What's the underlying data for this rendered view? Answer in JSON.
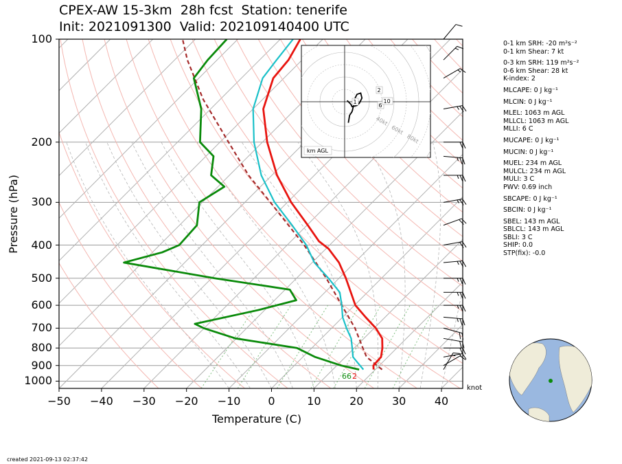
{
  "title": {
    "line1": "CPEX-AW 15-3km  28h fcst  Station: tenerife",
    "line2": "Init: 2021091300  Valid: 202109140400 UTC"
  },
  "axes": {
    "ylabel": "Pressure (hPa)",
    "xlabel": "Temperature (C)",
    "pressure_ticks": [
      "100",
      "200",
      "300",
      "400",
      "500",
      "600",
      "700",
      "800",
      "900",
      "1000"
    ],
    "temperature_ticks": [
      "−50",
      "−40",
      "−30",
      "−20",
      "−10",
      "0",
      "10",
      "20",
      "30",
      "40"
    ],
    "wind_unit": "knot"
  },
  "indices": [
    {
      "text": "0-1 km SRH: -20 m²s⁻²",
      "gap": false
    },
    {
      "text": "0-1 km Shear: 7 kt",
      "gap": false
    },
    {
      "text": "0-3 km SRH: 119 m²s⁻²",
      "gap": true
    },
    {
      "text": "0-6 km Shear: 28 kt",
      "gap": false
    },
    {
      "text": "K-index: 2",
      "gap": false
    },
    {
      "text": "MLCAPE: 0 J kg⁻¹",
      "gap": true
    },
    {
      "text": "MLCIN: 0 J kg⁻¹",
      "gap": true
    },
    {
      "text": "MLEL: 1063 m AGL",
      "gap": true
    },
    {
      "text": "MLLCL: 1063 m AGL",
      "gap": false
    },
    {
      "text": "MLLI: 6 C",
      "gap": false
    },
    {
      "text": "MUCAPE: 0 J kg⁻¹",
      "gap": true
    },
    {
      "text": "MUCIN: 0 J kg⁻¹",
      "gap": true
    },
    {
      "text": "MUEL: 234 m AGL",
      "gap": true
    },
    {
      "text": "MULCL: 234 m AGL",
      "gap": false
    },
    {
      "text": "MULI: 3 C",
      "gap": false
    },
    {
      "text": "PWV: 0.69 inch",
      "gap": false
    },
    {
      "text": "SBCAPE: 0 J kg⁻¹",
      "gap": true
    },
    {
      "text": "SBCIN: 0 J kg⁻¹",
      "gap": true
    },
    {
      "text": "SBEL: 143 m AGL",
      "gap": true
    },
    {
      "text": "SBLCL: 143 m AGL",
      "gap": false
    },
    {
      "text": "SBLI: 3 C",
      "gap": false
    },
    {
      "text": "SHIP: 0.0",
      "gap": false
    },
    {
      "text": "STP(fix): -0.0",
      "gap": false
    }
  ],
  "hodograph": {
    "label": "km AGL",
    "ring_labels": [
      "40kt",
      "60kt",
      "80kt"
    ],
    "height_labels": [
      "1",
      "2",
      "6",
      "10"
    ]
  },
  "surface_labels": {
    "dewpoint": "66",
    "temperature": "2"
  },
  "created": "created 2021-09-13 02:37:42",
  "colors": {
    "temperature": "#e8140f",
    "dewpoint": "#0a8a0a",
    "wetbulb": "#19c0c8",
    "parcel": "#a52a2a",
    "dry_adiabat": "#f4b6b0",
    "moist_adiabat": "#b4b4b4",
    "mixing_ratio": "#7fbf7f",
    "ocean": "#9ab8e0",
    "land": "#efecd9"
  },
  "chart_data": {
    "type": "skew-t log-p sounding",
    "ylim_hpa": [
      1050,
      100
    ],
    "xlim_c": [
      -50,
      45
    ],
    "temperature": [
      {
        "p": 925,
        "t": 19.6
      },
      {
        "p": 900,
        "t": 18.6
      },
      {
        "p": 850,
        "t": 18.4
      },
      {
        "p": 800,
        "t": 16.6
      },
      {
        "p": 750,
        "t": 14.3
      },
      {
        "p": 700,
        "t": 10.4
      },
      {
        "p": 650,
        "t": 5.4
      },
      {
        "p": 600,
        "t": 0.2
      },
      {
        "p": 550,
        "t": -3.9
      },
      {
        "p": 500,
        "t": -8.4
      },
      {
        "p": 450,
        "t": -13.7
      },
      {
        "p": 410,
        "t": -19.4
      },
      {
        "p": 390,
        "t": -23.4
      },
      {
        "p": 350,
        "t": -29.8
      },
      {
        "p": 300,
        "t": -39.1
      },
      {
        "p": 250,
        "t": -48.8
      },
      {
        "p": 200,
        "t": -58.9
      },
      {
        "p": 160,
        "t": -67.6
      },
      {
        "p": 130,
        "t": -72.5
      },
      {
        "p": 115,
        "t": -73.2
      },
      {
        "p": 100,
        "t": -75.3
      }
    ],
    "dewpoint": [
      {
        "p": 925,
        "td": 16.2
      },
      {
        "p": 900,
        "td": 11.0
      },
      {
        "p": 850,
        "td": 2.9
      },
      {
        "p": 800,
        "td": -3.5
      },
      {
        "p": 750,
        "td": -20.2
      },
      {
        "p": 700,
        "td": -30.1
      },
      {
        "p": 680,
        "td": -33.2
      },
      {
        "p": 620,
        "td": -21.6
      },
      {
        "p": 580,
        "td": -14.9
      },
      {
        "p": 540,
        "td": -18.9
      },
      {
        "p": 500,
        "td": -39.3
      },
      {
        "p": 450,
        "td": -64.3
      },
      {
        "p": 420,
        "td": -57.7
      },
      {
        "p": 400,
        "td": -55.4
      },
      {
        "p": 350,
        "td": -55.9
      },
      {
        "p": 300,
        "td": -60.7
      },
      {
        "p": 270,
        "td": -58.5
      },
      {
        "p": 250,
        "td": -64.3
      },
      {
        "p": 220,
        "td": -68.2
      },
      {
        "p": 200,
        "td": -74.7
      },
      {
        "p": 160,
        "td": -82.2
      },
      {
        "p": 130,
        "td": -91.2
      },
      {
        "p": 115,
        "td": -92.2
      },
      {
        "p": 100,
        "td": -92.6
      }
    ],
    "wetbulb": [
      {
        "p": 925,
        "t": 17.2
      },
      {
        "p": 880,
        "t": 14.0
      },
      {
        "p": 850,
        "t": 11.8
      },
      {
        "p": 800,
        "t": 9.5
      },
      {
        "p": 750,
        "t": 7.0
      },
      {
        "p": 700,
        "t": 3.5
      },
      {
        "p": 650,
        "t": 0.0
      },
      {
        "p": 600,
        "t": -3.0
      },
      {
        "p": 550,
        "t": -6.5
      },
      {
        "p": 500,
        "t": -12.5
      },
      {
        "p": 450,
        "t": -19.5
      },
      {
        "p": 400,
        "t": -25.5
      },
      {
        "p": 350,
        "t": -33.5
      },
      {
        "p": 300,
        "t": -43.0
      },
      {
        "p": 250,
        "t": -52.5
      },
      {
        "p": 200,
        "t": -62.0
      },
      {
        "p": 160,
        "t": -70.0
      },
      {
        "p": 130,
        "t": -75.0
      },
      {
        "p": 115,
        "t": -76.0
      },
      {
        "p": 100,
        "t": -77.0
      }
    ],
    "parcel": [
      {
        "p": 925,
        "t": 21.6
      },
      {
        "p": 850,
        "t": 15.0
      },
      {
        "p": 800,
        "t": 12.0
      },
      {
        "p": 700,
        "t": 5.5
      },
      {
        "p": 600,
        "t": -3.0
      },
      {
        "p": 500,
        "t": -13.0
      },
      {
        "p": 400,
        "t": -26.0
      },
      {
        "p": 300,
        "t": -44.0
      },
      {
        "p": 250,
        "t": -55.5
      },
      {
        "p": 200,
        "t": -68.0
      },
      {
        "p": 150,
        "t": -84.0
      },
      {
        "p": 115,
        "t": -97.0
      },
      {
        "p": 100,
        "t": -103.0
      }
    ],
    "hodograph_points": [
      {
        "u": 2,
        "v": 1
      },
      {
        "u": 5,
        "v": -2
      },
      {
        "u": 6,
        "v": -4
      },
      {
        "u": 10,
        "v": -3
      },
      {
        "u": 12,
        "v": -1
      },
      {
        "u": 14,
        "v": 3
      },
      {
        "u": 13,
        "v": 7
      },
      {
        "u": 10,
        "v": 6
      },
      {
        "u": 8,
        "v": 2
      },
      {
        "u": 7,
        "v": -4
      },
      {
        "u": 6,
        "v": -8
      },
      {
        "u": 4,
        "v": -11
      },
      {
        "u": 3,
        "v": -17
      }
    ],
    "wind_barbs": [
      {
        "p": 925,
        "spd": 15,
        "dir": 30
      },
      {
        "p": 900,
        "spd": 10,
        "dir": 60
      },
      {
        "p": 850,
        "spd": 15,
        "dir": 80
      },
      {
        "p": 800,
        "spd": 20,
        "dir": 90
      },
      {
        "p": 750,
        "spd": 20,
        "dir": 100
      },
      {
        "p": 700,
        "spd": 20,
        "dir": 105
      },
      {
        "p": 650,
        "spd": 25,
        "dir": 95
      },
      {
        "p": 600,
        "spd": 25,
        "dir": 90
      },
      {
        "p": 550,
        "spd": 25,
        "dir": 90
      },
      {
        "p": 500,
        "spd": 25,
        "dir": 90
      },
      {
        "p": 450,
        "spd": 25,
        "dir": 85
      },
      {
        "p": 400,
        "spd": 20,
        "dir": 80
      },
      {
        "p": 350,
        "spd": 20,
        "dir": 70
      },
      {
        "p": 300,
        "spd": 25,
        "dir": 80
      },
      {
        "p": 250,
        "spd": 25,
        "dir": 90
      },
      {
        "p": 220,
        "spd": 25,
        "dir": 95
      },
      {
        "p": 200,
        "spd": 20,
        "dir": 90
      },
      {
        "p": 160,
        "spd": 25,
        "dir": 80
      },
      {
        "p": 130,
        "spd": 15,
        "dir": 60
      },
      {
        "p": 115,
        "spd": 15,
        "dir": 45
      },
      {
        "p": 100,
        "spd": 10,
        "dir": 40
      }
    ]
  }
}
